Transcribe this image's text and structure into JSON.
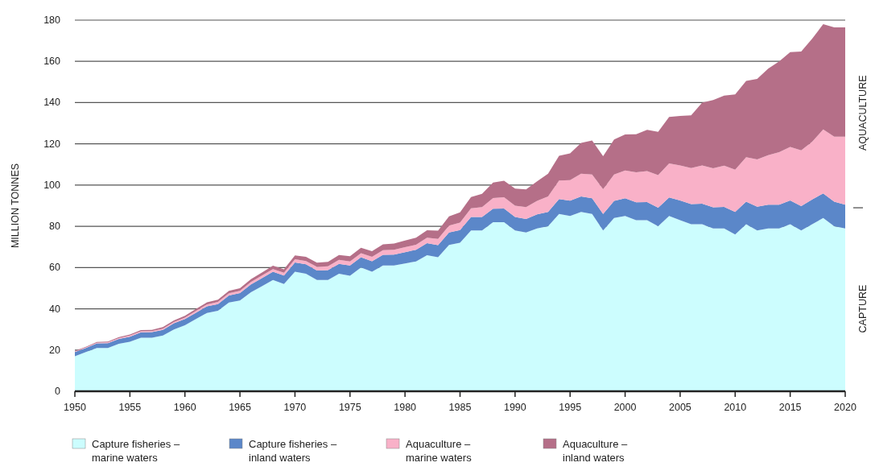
{
  "chart_data": {
    "type": "area",
    "stacked": true,
    "ylabel": "MILLION TONNES",
    "x": [
      1950,
      1951,
      1952,
      1953,
      1954,
      1955,
      1956,
      1957,
      1958,
      1959,
      1960,
      1961,
      1962,
      1963,
      1964,
      1965,
      1966,
      1967,
      1968,
      1969,
      1970,
      1971,
      1972,
      1973,
      1974,
      1975,
      1976,
      1977,
      1978,
      1979,
      1980,
      1981,
      1982,
      1983,
      1984,
      1985,
      1986,
      1987,
      1988,
      1989,
      1990,
      1991,
      1992,
      1993,
      1994,
      1995,
      1996,
      1997,
      1998,
      1999,
      2000,
      2001,
      2002,
      2003,
      2004,
      2005,
      2006,
      2007,
      2008,
      2009,
      2010,
      2011,
      2012,
      2013,
      2014,
      2015,
      2016,
      2017,
      2018,
      2019,
      2020
    ],
    "xlim": [
      1950,
      2020
    ],
    "xticks": [
      1950,
      1955,
      1960,
      1965,
      1970,
      1975,
      1980,
      1985,
      1990,
      1995,
      2000,
      2005,
      2010,
      2015,
      2020
    ],
    "ylim": [
      0,
      180
    ],
    "yticks": [
      0,
      20,
      40,
      60,
      80,
      100,
      120,
      140,
      160,
      180
    ],
    "grid": "y",
    "legend": "bottom",
    "series": [
      {
        "name": "Capture fisheries –\nmarine waters",
        "color": "#ccfdfe",
        "values": [
          17,
          19,
          21,
          21,
          23,
          24,
          26,
          26,
          27,
          30,
          32,
          35,
          38,
          39,
          43,
          44,
          48,
          51,
          54,
          52,
          58,
          57,
          54,
          54,
          57,
          56,
          60,
          58,
          61,
          61,
          62,
          63,
          66,
          65,
          71,
          72,
          78,
          78,
          82,
          82,
          78,
          77,
          79,
          80,
          86,
          85,
          87,
          86,
          78,
          84,
          85,
          83,
          83,
          80,
          85,
          83,
          81,
          81,
          79,
          79,
          76,
          81,
          78,
          79,
          79,
          81,
          78,
          81,
          84,
          80,
          79
        ]
      },
      {
        "name": "Capture fisheries –\ninland waters",
        "color": "#5b87c9",
        "values": [
          2,
          2,
          2.2,
          2.3,
          2.4,
          2.5,
          2.6,
          2.7,
          2.8,
          3,
          3,
          3.1,
          3.2,
          3.3,
          3.5,
          3.6,
          3.8,
          3.9,
          4,
          4.1,
          4.5,
          4.6,
          4.6,
          4.8,
          4.8,
          5,
          5,
          5.1,
          5.2,
          5.3,
          5.5,
          5.6,
          5.8,
          5.9,
          6,
          6.2,
          6.5,
          6.5,
          6.5,
          6.6,
          6.5,
          6.6,
          6.8,
          7,
          7.2,
          7.4,
          7.5,
          7.6,
          8,
          8.3,
          8.6,
          8.7,
          8.8,
          9,
          9,
          9.5,
          9.8,
          10,
          10.2,
          10.4,
          11,
          11,
          11.5,
          11.5,
          11.5,
          11.5,
          11.8,
          12,
          12,
          12,
          11.5
        ]
      },
      {
        "name": "Aquaculture –\nmarine waters",
        "color": "#f9b1c8",
        "values": [
          0.3,
          0.3,
          0.3,
          0.4,
          0.4,
          0.5,
          0.5,
          0.5,
          0.6,
          0.6,
          0.7,
          0.8,
          0.9,
          1,
          1,
          1.1,
          1.2,
          1.2,
          1.3,
          1.4,
          1.5,
          1.6,
          1.7,
          1.8,
          1.9,
          2,
          2,
          2.1,
          2.2,
          2.3,
          2.4,
          2.5,
          2.7,
          3,
          3.3,
          3.6,
          4.2,
          4.8,
          5.2,
          5.5,
          5.5,
          5.7,
          6.5,
          7.5,
          9,
          10,
          11,
          11.5,
          12,
          12.8,
          13.5,
          14.5,
          15,
          15.8,
          16.5,
          17,
          17.5,
          18.5,
          19,
          20,
          20.5,
          21.5,
          23,
          24,
          25.5,
          26,
          27,
          28,
          31,
          31.5,
          33
        ]
      },
      {
        "name": "Aquaculture –\ninland waters",
        "color": "#b56f88",
        "values": [
          0.3,
          0.3,
          0.4,
          0.4,
          0.5,
          0.5,
          0.6,
          0.6,
          0.7,
          0.8,
          0.9,
          1,
          1,
          1.1,
          1.2,
          1.3,
          1.4,
          1.5,
          1.6,
          1.7,
          1.9,
          2,
          2.1,
          2.2,
          2.4,
          2.5,
          2.6,
          2.7,
          2.9,
          3,
          3.2,
          3.4,
          3.6,
          4,
          4.5,
          5,
          5.5,
          6.5,
          7.5,
          8,
          8.3,
          8.6,
          9.5,
          11,
          12,
          13,
          15,
          16.5,
          16,
          17,
          17.5,
          18.5,
          20,
          21,
          22.5,
          24,
          25.5,
          30.5,
          33,
          34,
          36.5,
          37,
          39,
          42,
          44,
          46,
          48,
          50,
          51,
          53,
          53
        ]
      }
    ],
    "annotations": [
      "AQUACULTURE",
      "CAPTURE"
    ]
  }
}
